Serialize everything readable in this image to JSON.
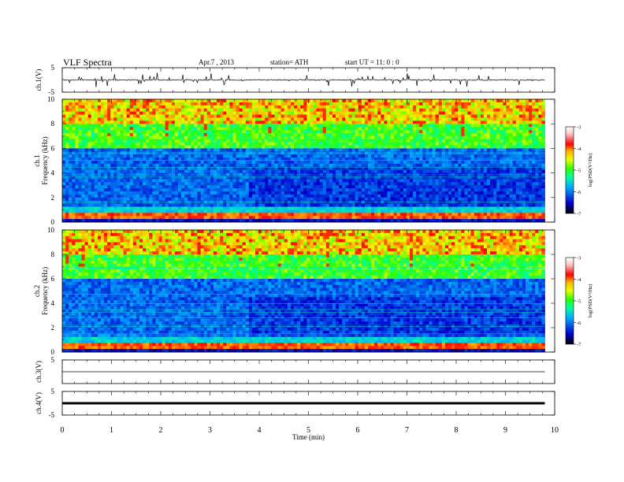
{
  "header": {
    "title": "VLF  Spectra",
    "date": "Apr.7  , 2013",
    "station": "station= ATH",
    "start": "start  UT  =   11: 0  : 0"
  },
  "chart_data": [
    {
      "type": "line",
      "panel": "ch1-waveform",
      "ylabel": "ch.1(V)",
      "ylim": [
        -5,
        5
      ],
      "yticks": [
        "5",
        "-5"
      ],
      "xlim": [
        0,
        10
      ],
      "approx_baseline": 0,
      "approx_envelope": [
        -2,
        2
      ]
    },
    {
      "type": "heatmap",
      "panel": "ch1-spectrogram",
      "ylabel_channel": "ch.1",
      "ylabel": "Frequency  (kHz)",
      "ylim": [
        0,
        10
      ],
      "yticks": [
        "0",
        "2",
        "4",
        "6",
        "8",
        "10"
      ],
      "xlim": [
        0,
        9.8
      ],
      "colorbar": {
        "label": "log(PSD(V²/Hz)",
        "range": [
          -7,
          -3
        ],
        "ticks": [
          "-3",
          "-4",
          "-5",
          "-6",
          "-7"
        ],
        "colors": [
          "#000000",
          "#0000cc",
          "#00a8ff",
          "#00ffa0",
          "#30ff00",
          "#e8ff00",
          "#ffb000",
          "#ff0000",
          "#ffc8c8",
          "#ffffff"
        ]
      },
      "approx_bands_khz": {
        "strong_line": [
          0.3,
          0.7
        ],
        "quiet_after_min": 3.8
      }
    },
    {
      "type": "heatmap",
      "panel": "ch2-spectrogram",
      "ylabel_channel": "ch.2",
      "ylabel": "Frequency  (kHz)",
      "ylim": [
        0,
        10
      ],
      "yticks": [
        "0",
        "2",
        "4",
        "6",
        "8",
        "10"
      ],
      "xlim": [
        0,
        9.8
      ],
      "colorbar": {
        "label": "log(PSD(V²/Hz)",
        "range": [
          -7,
          -3
        ],
        "ticks": [
          "-3",
          "-4",
          "-5",
          "-6",
          "-7"
        ]
      }
    },
    {
      "type": "line",
      "panel": "ch3-waveform",
      "ylabel": "ch.3(V)",
      "ylim": [
        -5,
        5
      ],
      "yticks": [
        "5"
      ],
      "approx_baseline": 0
    },
    {
      "type": "line",
      "panel": "ch4-waveform",
      "ylabel": "ch.4(V)",
      "ylim": [
        -5,
        5
      ],
      "yticks": [
        "5",
        "-5"
      ],
      "approx_baseline": 0
    }
  ],
  "x_axis": {
    "label": "Time  (min)",
    "ticks": [
      "0",
      "1",
      "2",
      "3",
      "4",
      "5",
      "6",
      "7",
      "8",
      "9",
      "10"
    ],
    "xlim": [
      0,
      10
    ]
  }
}
